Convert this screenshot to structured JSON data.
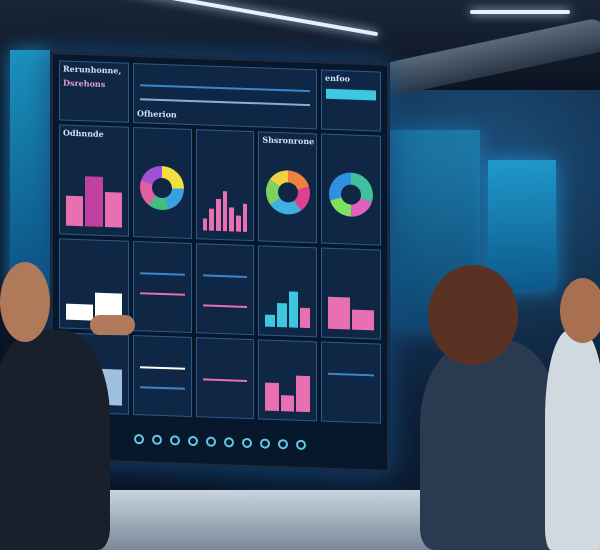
{
  "screen": {
    "title_line1": "Rerunhonne,",
    "title_line2": "Dsrehons",
    "overview_label": "Ofherion",
    "section_label": "Shsronrone",
    "side_label": "Odhnnde",
    "right_label": "enfoo"
  },
  "colors": {
    "screen_bg": "#08182c",
    "accent_cyan": "#5fc8e8",
    "accent_pink": "#e86fb0"
  }
}
